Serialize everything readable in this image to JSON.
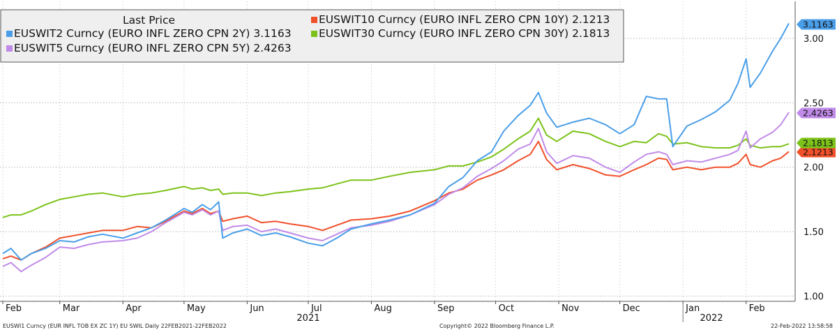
{
  "chart_data": {
    "type": "line",
    "title": "Last Price",
    "ylim": [
      1.0,
      3.2
    ],
    "y_ticks": [
      "1.00",
      "1.50",
      "2.00",
      "2.50",
      "3.00"
    ],
    "y_tick_values": [
      1.0,
      1.5,
      2.0,
      2.5,
      3.0
    ],
    "grid": true,
    "legend_position": "top-left",
    "x_start": "2021-02-01",
    "x_end": "2022-02-22",
    "month_ticks": [
      {
        "label": "Feb",
        "date": "2021-02-01"
      },
      {
        "label": "Mar",
        "date": "2021-03-01"
      },
      {
        "label": "Apr",
        "date": "2021-04-01"
      },
      {
        "label": "May",
        "date": "2021-05-01"
      },
      {
        "label": "Jun",
        "date": "2021-06-01"
      },
      {
        "label": "Jul",
        "date": "2021-07-01"
      },
      {
        "label": "Aug",
        "date": "2021-08-01"
      },
      {
        "label": "Sep",
        "date": "2021-09-01"
      },
      {
        "label": "Oct",
        "date": "2021-10-01"
      },
      {
        "label": "Nov",
        "date": "2021-11-01"
      },
      {
        "label": "Dec",
        "date": "2021-12-01"
      },
      {
        "label": "Jan",
        "date": "2022-01-01"
      },
      {
        "label": "Feb",
        "date": "2022-02-01"
      }
    ],
    "year_labels": [
      {
        "label": "2021",
        "date": "2021-07-01"
      },
      {
        "label": "2022",
        "date": "2022-01-15"
      }
    ],
    "year_divider_date": "2022-01-01",
    "series": [
      {
        "name": "EUSWIT2 Curncy (EURO INFL ZERO CPN 2Y)",
        "legend": "EUSWIT2 Curncy (EURO INFL ZERO CPN 2Y) 3.1163",
        "last": "3.1163",
        "color": "#4a9ee8",
        "points": [
          [
            "2021-02-01",
            1.33
          ],
          [
            "2021-02-05",
            1.37
          ],
          [
            "2021-02-10",
            1.28
          ],
          [
            "2021-02-15",
            1.33
          ],
          [
            "2021-02-22",
            1.37
          ],
          [
            "2021-03-01",
            1.43
          ],
          [
            "2021-03-08",
            1.42
          ],
          [
            "2021-03-15",
            1.46
          ],
          [
            "2021-03-22",
            1.48
          ],
          [
            "2021-04-01",
            1.45
          ],
          [
            "2021-04-08",
            1.49
          ],
          [
            "2021-04-15",
            1.53
          ],
          [
            "2021-04-22",
            1.59
          ],
          [
            "2021-05-01",
            1.68
          ],
          [
            "2021-05-05",
            1.65
          ],
          [
            "2021-05-10",
            1.71
          ],
          [
            "2021-05-14",
            1.67
          ],
          [
            "2021-05-18",
            1.73
          ],
          [
            "2021-05-20",
            1.45
          ],
          [
            "2021-05-25",
            1.49
          ],
          [
            "2021-06-01",
            1.52
          ],
          [
            "2021-06-08",
            1.47
          ],
          [
            "2021-06-15",
            1.49
          ],
          [
            "2021-06-22",
            1.46
          ],
          [
            "2021-07-01",
            1.41
          ],
          [
            "2021-07-08",
            1.39
          ],
          [
            "2021-07-15",
            1.45
          ],
          [
            "2021-07-22",
            1.52
          ],
          [
            "2021-08-01",
            1.56
          ],
          [
            "2021-08-10",
            1.59
          ],
          [
            "2021-08-20",
            1.63
          ],
          [
            "2021-09-01",
            1.72
          ],
          [
            "2021-09-08",
            1.85
          ],
          [
            "2021-09-15",
            1.92
          ],
          [
            "2021-09-22",
            2.05
          ],
          [
            "2021-09-29",
            2.12
          ],
          [
            "2021-10-05",
            2.28
          ],
          [
            "2021-10-12",
            2.4
          ],
          [
            "2021-10-18",
            2.48
          ],
          [
            "2021-10-22",
            2.58
          ],
          [
            "2021-10-26",
            2.42
          ],
          [
            "2021-10-31",
            2.31
          ],
          [
            "2021-11-08",
            2.35
          ],
          [
            "2021-11-16",
            2.38
          ],
          [
            "2021-11-24",
            2.33
          ],
          [
            "2021-12-01",
            2.26
          ],
          [
            "2021-12-08",
            2.33
          ],
          [
            "2021-12-14",
            2.55
          ],
          [
            "2021-12-20",
            2.53
          ],
          [
            "2021-12-24",
            2.53
          ],
          [
            "2021-12-27",
            2.16
          ],
          [
            "2022-01-03",
            2.32
          ],
          [
            "2022-01-10",
            2.37
          ],
          [
            "2022-01-17",
            2.43
          ],
          [
            "2022-01-24",
            2.52
          ],
          [
            "2022-01-28",
            2.65
          ],
          [
            "2022-02-01",
            2.84
          ],
          [
            "2022-02-03",
            2.62
          ],
          [
            "2022-02-08",
            2.73
          ],
          [
            "2022-02-14",
            2.9
          ],
          [
            "2022-02-18",
            3.0
          ],
          [
            "2022-02-22",
            3.1163
          ]
        ]
      },
      {
        "name": "EUSWIT5 Curncy (EURO INFL ZERO CPN 5Y)",
        "legend": "EUSWIT5 Curncy (EURO INFL ZERO CPN 5Y) 2.4263",
        "last": "2.4263",
        "color": "#c08ae8",
        "points": [
          [
            "2021-02-01",
            1.23
          ],
          [
            "2021-02-05",
            1.26
          ],
          [
            "2021-02-10",
            1.19
          ],
          [
            "2021-02-15",
            1.24
          ],
          [
            "2021-02-22",
            1.3
          ],
          [
            "2021-03-01",
            1.38
          ],
          [
            "2021-03-08",
            1.37
          ],
          [
            "2021-03-15",
            1.4
          ],
          [
            "2021-03-22",
            1.42
          ],
          [
            "2021-04-01",
            1.43
          ],
          [
            "2021-04-08",
            1.45
          ],
          [
            "2021-04-15",
            1.5
          ],
          [
            "2021-04-22",
            1.57
          ],
          [
            "2021-05-01",
            1.65
          ],
          [
            "2021-05-05",
            1.63
          ],
          [
            "2021-05-10",
            1.67
          ],
          [
            "2021-05-14",
            1.63
          ],
          [
            "2021-05-18",
            1.66
          ],
          [
            "2021-05-20",
            1.51
          ],
          [
            "2021-05-25",
            1.54
          ],
          [
            "2021-06-01",
            1.55
          ],
          [
            "2021-06-08",
            1.5
          ],
          [
            "2021-06-15",
            1.52
          ],
          [
            "2021-06-22",
            1.49
          ],
          [
            "2021-07-01",
            1.45
          ],
          [
            "2021-07-08",
            1.43
          ],
          [
            "2021-07-15",
            1.48
          ],
          [
            "2021-07-22",
            1.53
          ],
          [
            "2021-08-01",
            1.55
          ],
          [
            "2021-08-10",
            1.58
          ],
          [
            "2021-08-20",
            1.63
          ],
          [
            "2021-09-01",
            1.71
          ],
          [
            "2021-09-08",
            1.79
          ],
          [
            "2021-09-15",
            1.84
          ],
          [
            "2021-09-22",
            1.93
          ],
          [
            "2021-09-29",
            1.99
          ],
          [
            "2021-10-05",
            2.05
          ],
          [
            "2021-10-12",
            2.14
          ],
          [
            "2021-10-18",
            2.18
          ],
          [
            "2021-10-22",
            2.3
          ],
          [
            "2021-10-26",
            2.12
          ],
          [
            "2021-10-31",
            2.03
          ],
          [
            "2021-11-08",
            2.09
          ],
          [
            "2021-11-16",
            2.07
          ],
          [
            "2021-11-24",
            2.0
          ],
          [
            "2021-12-01",
            1.96
          ],
          [
            "2021-12-08",
            2.04
          ],
          [
            "2021-12-14",
            2.1
          ],
          [
            "2021-12-20",
            2.12
          ],
          [
            "2021-12-24",
            2.1
          ],
          [
            "2021-12-27",
            2.02
          ],
          [
            "2022-01-03",
            2.05
          ],
          [
            "2022-01-10",
            2.04
          ],
          [
            "2022-01-17",
            2.07
          ],
          [
            "2022-01-24",
            2.1
          ],
          [
            "2022-01-28",
            2.13
          ],
          [
            "2022-02-01",
            2.28
          ],
          [
            "2022-02-03",
            2.15
          ],
          [
            "2022-02-08",
            2.22
          ],
          [
            "2022-02-14",
            2.27
          ],
          [
            "2022-02-18",
            2.33
          ],
          [
            "2022-02-22",
            2.4263
          ]
        ]
      },
      {
        "name": "EUSWIT10 Curncy (EURO INFL ZERO CPN 10Y)",
        "legend": "EUSWIT10 Curncy (EURO INFL ZERO CPN 10Y) 2.1213",
        "last": "2.1213",
        "color": "#f0502a",
        "points": [
          [
            "2021-02-01",
            1.29
          ],
          [
            "2021-02-05",
            1.31
          ],
          [
            "2021-02-10",
            1.28
          ],
          [
            "2021-02-15",
            1.33
          ],
          [
            "2021-02-22",
            1.38
          ],
          [
            "2021-03-01",
            1.45
          ],
          [
            "2021-03-08",
            1.47
          ],
          [
            "2021-03-15",
            1.49
          ],
          [
            "2021-03-22",
            1.51
          ],
          [
            "2021-04-01",
            1.51
          ],
          [
            "2021-04-08",
            1.54
          ],
          [
            "2021-04-15",
            1.53
          ],
          [
            "2021-04-22",
            1.58
          ],
          [
            "2021-05-01",
            1.66
          ],
          [
            "2021-05-05",
            1.64
          ],
          [
            "2021-05-10",
            1.68
          ],
          [
            "2021-05-14",
            1.64
          ],
          [
            "2021-05-18",
            1.66
          ],
          [
            "2021-05-20",
            1.58
          ],
          [
            "2021-05-25",
            1.6
          ],
          [
            "2021-06-01",
            1.62
          ],
          [
            "2021-06-08",
            1.57
          ],
          [
            "2021-06-15",
            1.58
          ],
          [
            "2021-06-22",
            1.56
          ],
          [
            "2021-07-01",
            1.54
          ],
          [
            "2021-07-08",
            1.51
          ],
          [
            "2021-07-15",
            1.55
          ],
          [
            "2021-07-22",
            1.59
          ],
          [
            "2021-08-01",
            1.6
          ],
          [
            "2021-08-10",
            1.62
          ],
          [
            "2021-08-20",
            1.66
          ],
          [
            "2021-09-01",
            1.74
          ],
          [
            "2021-09-08",
            1.8
          ],
          [
            "2021-09-15",
            1.83
          ],
          [
            "2021-09-22",
            1.9
          ],
          [
            "2021-09-29",
            1.94
          ],
          [
            "2021-10-05",
            1.98
          ],
          [
            "2021-10-12",
            2.05
          ],
          [
            "2021-10-18",
            2.1
          ],
          [
            "2021-10-22",
            2.2
          ],
          [
            "2021-10-26",
            2.06
          ],
          [
            "2021-10-31",
            1.98
          ],
          [
            "2021-11-08",
            2.02
          ],
          [
            "2021-11-16",
            1.99
          ],
          [
            "2021-11-24",
            1.94
          ],
          [
            "2021-12-01",
            1.93
          ],
          [
            "2021-12-08",
            1.98
          ],
          [
            "2021-12-14",
            2.02
          ],
          [
            "2021-12-20",
            2.07
          ],
          [
            "2021-12-24",
            2.06
          ],
          [
            "2021-12-27",
            1.98
          ],
          [
            "2022-01-03",
            2.0
          ],
          [
            "2022-01-10",
            1.98
          ],
          [
            "2022-01-17",
            2.0
          ],
          [
            "2022-01-24",
            2.0
          ],
          [
            "2022-01-28",
            2.03
          ],
          [
            "2022-02-01",
            2.1
          ],
          [
            "2022-02-03",
            2.02
          ],
          [
            "2022-02-08",
            2.0
          ],
          [
            "2022-02-14",
            2.05
          ],
          [
            "2022-02-18",
            2.07
          ],
          [
            "2022-02-22",
            2.1213
          ]
        ]
      },
      {
        "name": "EUSWIT30 Curncy (EURO INFL ZERO CPN 30Y)",
        "legend": "EUSWIT30 Curncy (EURO INFL ZERO CPN 30Y) 2.1813",
        "last": "2.1813",
        "color": "#7cc21a",
        "points": [
          [
            "2021-02-01",
            1.61
          ],
          [
            "2021-02-05",
            1.63
          ],
          [
            "2021-02-10",
            1.63
          ],
          [
            "2021-02-15",
            1.66
          ],
          [
            "2021-02-22",
            1.71
          ],
          [
            "2021-03-01",
            1.75
          ],
          [
            "2021-03-08",
            1.77
          ],
          [
            "2021-03-15",
            1.79
          ],
          [
            "2021-03-22",
            1.8
          ],
          [
            "2021-04-01",
            1.77
          ],
          [
            "2021-04-08",
            1.79
          ],
          [
            "2021-04-15",
            1.8
          ],
          [
            "2021-04-22",
            1.82
          ],
          [
            "2021-05-01",
            1.85
          ],
          [
            "2021-05-05",
            1.83
          ],
          [
            "2021-05-10",
            1.84
          ],
          [
            "2021-05-14",
            1.82
          ],
          [
            "2021-05-18",
            1.83
          ],
          [
            "2021-05-20",
            1.79
          ],
          [
            "2021-05-25",
            1.8
          ],
          [
            "2021-06-01",
            1.8
          ],
          [
            "2021-06-08",
            1.78
          ],
          [
            "2021-06-15",
            1.8
          ],
          [
            "2021-06-22",
            1.81
          ],
          [
            "2021-07-01",
            1.83
          ],
          [
            "2021-07-08",
            1.84
          ],
          [
            "2021-07-15",
            1.87
          ],
          [
            "2021-07-22",
            1.9
          ],
          [
            "2021-08-01",
            1.9
          ],
          [
            "2021-08-10",
            1.93
          ],
          [
            "2021-08-20",
            1.96
          ],
          [
            "2021-09-01",
            1.98
          ],
          [
            "2021-09-08",
            2.01
          ],
          [
            "2021-09-15",
            2.01
          ],
          [
            "2021-09-22",
            2.04
          ],
          [
            "2021-09-29",
            2.08
          ],
          [
            "2021-10-05",
            2.14
          ],
          [
            "2021-10-12",
            2.22
          ],
          [
            "2021-10-18",
            2.28
          ],
          [
            "2021-10-22",
            2.38
          ],
          [
            "2021-10-26",
            2.25
          ],
          [
            "2021-10-31",
            2.2
          ],
          [
            "2021-11-08",
            2.28
          ],
          [
            "2021-11-16",
            2.26
          ],
          [
            "2021-11-24",
            2.2
          ],
          [
            "2021-12-01",
            2.16
          ],
          [
            "2021-12-08",
            2.2
          ],
          [
            "2021-12-14",
            2.19
          ],
          [
            "2021-12-20",
            2.26
          ],
          [
            "2021-12-24",
            2.24
          ],
          [
            "2021-12-27",
            2.18
          ],
          [
            "2022-01-03",
            2.19
          ],
          [
            "2022-01-10",
            2.16
          ],
          [
            "2022-01-17",
            2.15
          ],
          [
            "2022-01-24",
            2.15
          ],
          [
            "2022-01-28",
            2.17
          ],
          [
            "2022-02-01",
            2.22
          ],
          [
            "2022-02-03",
            2.17
          ],
          [
            "2022-02-08",
            2.15
          ],
          [
            "2022-02-14",
            2.16
          ],
          [
            "2022-02-18",
            2.16
          ],
          [
            "2022-02-22",
            2.1813
          ]
        ]
      }
    ]
  },
  "footer": {
    "left": "EUSWI1 Curncy (EUR INFL TOB EX ZC 1Y) EU SWIL  Daily 22FEB2021-22FEB2022",
    "center": "Copyright© 2022 Bloomberg Finance L.P.",
    "right": "22-Feb-2022 13:58:58"
  }
}
